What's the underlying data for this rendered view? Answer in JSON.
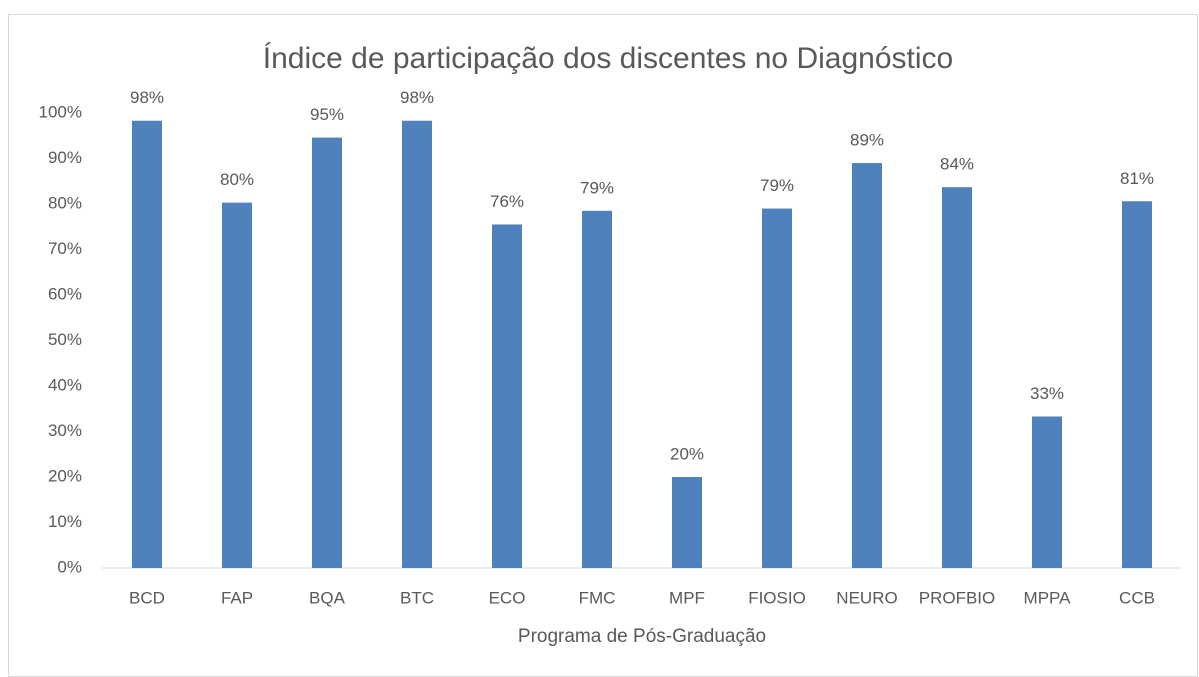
{
  "chart_data": {
    "type": "bar",
    "title": "Índice de participação dos discentes no Diagnóstico",
    "x_label": "Programa de Pós-Graduação",
    "categories": [
      "BCD",
      "FAP",
      "BQA",
      "BTC",
      "ECO",
      "FMC",
      "MPF",
      "FIOSIO",
      "NEURO",
      "PROFBIO",
      "MPPA",
      "CCB"
    ],
    "values": [
      98.3,
      80.3,
      94.6,
      98.3,
      75.5,
      78.5,
      20,
      79,
      89,
      83.7,
      33.3,
      80.6
    ],
    "value_labels": [
      "98%",
      "80%",
      "95%",
      "98%",
      "76%",
      "79%",
      "20%",
      "79%",
      "89%",
      "84%",
      "33%",
      "81%"
    ],
    "color": "#4f81bd",
    "ylim": [
      0,
      100
    ],
    "yticks": [
      {
        "value": 0,
        "label": "0%"
      },
      {
        "value": 10,
        "label": "10%"
      },
      {
        "value": 20,
        "label": "20%"
      },
      {
        "value": 30,
        "label": "30%"
      },
      {
        "value": 40,
        "label": "40%"
      },
      {
        "value": 50,
        "label": "50%"
      },
      {
        "value": 60,
        "label": "60%"
      },
      {
        "value": 70,
        "label": "70%"
      },
      {
        "value": 80,
        "label": "80%"
      },
      {
        "value": 90,
        "label": "90%"
      },
      {
        "value": 100,
        "label": "100%"
      }
    ],
    "grid": false
  }
}
